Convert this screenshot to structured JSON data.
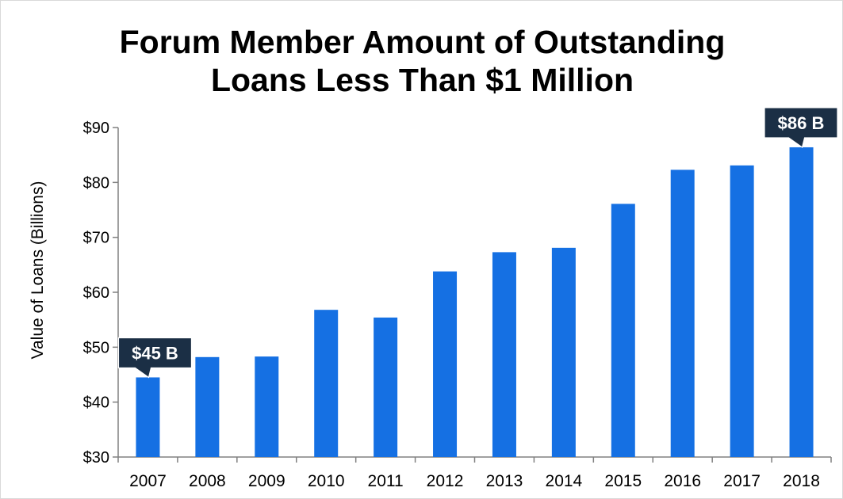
{
  "chart_data": {
    "type": "bar",
    "title_lines": [
      "Forum Member Amount of Outstanding",
      "Loans Less Than $1 Million"
    ],
    "xlabel": "",
    "ylabel": "Value of Loans (Billions)",
    "categories": [
      "2007",
      "2008",
      "2009",
      "2010",
      "2011",
      "2012",
      "2013",
      "2014",
      "2015",
      "2016",
      "2017",
      "2018"
    ],
    "values": [
      44.5,
      48.2,
      48.3,
      56.8,
      55.4,
      63.8,
      67.3,
      68.1,
      76.1,
      82.3,
      83.1,
      86.4
    ],
    "ylim": [
      30,
      90
    ],
    "yticks": [
      30,
      40,
      50,
      60,
      70,
      80,
      90
    ],
    "ytick_labels": [
      "$30",
      "$40",
      "$50",
      "$60",
      "$70",
      "$80",
      "$90"
    ],
    "grid": false,
    "bar_color": "#1570E3",
    "callouts": [
      {
        "category": "2007",
        "text": "$45 B"
      },
      {
        "category": "2018",
        "text": "$86 B"
      }
    ],
    "callout_color": "#1B2F45"
  }
}
